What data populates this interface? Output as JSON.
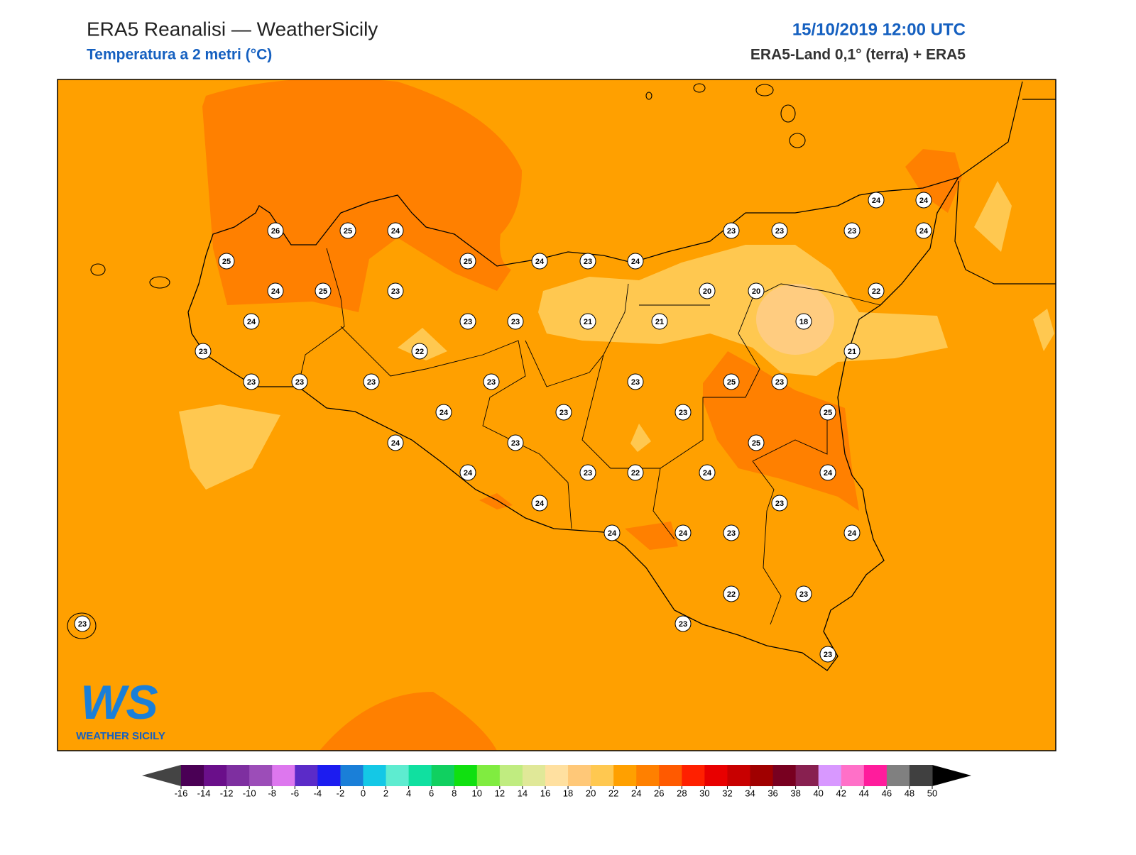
{
  "header": {
    "title": "ERA5 Reanalisi — WeatherSicily",
    "subtitle": "Temperatura a 2 metri (°C)",
    "date": "15/10/2019 12:00 UTC",
    "source": "ERA5-Land 0,1° (terra) + ERA5"
  },
  "stations": {
    "values": [
      26,
      25,
      24,
      25,
      25,
      24,
      23,
      24,
      23,
      23,
      23,
      24,
      24,
      24,
      24,
      25,
      23,
      20,
      20,
      22,
      24,
      23,
      23,
      21,
      21,
      18,
      23,
      22,
      21,
      23,
      23,
      23,
      23,
      23,
      25,
      23,
      24,
      23,
      23,
      25,
      24,
      23,
      25,
      24,
      23,
      22,
      24,
      24,
      24,
      23,
      24,
      24,
      23,
      24,
      22,
      23,
      23,
      23,
      23
    ]
  },
  "colorbar": {
    "ticks": [
      -16,
      -14,
      -12,
      -10,
      -8,
      -6,
      -4,
      -2,
      0,
      2,
      4,
      6,
      8,
      10,
      12,
      14,
      16,
      18,
      20,
      22,
      24,
      26,
      28,
      30,
      32,
      34,
      36,
      38,
      40,
      42,
      44,
      46,
      48,
      50
    ],
    "colors": [
      "#4a0055",
      "#6a0f8a",
      "#7e2fa0",
      "#9c4db8",
      "#dd77ee",
      "#5b2bc8",
      "#1c1cf0",
      "#1a7fd8",
      "#14c8e6",
      "#5eecd0",
      "#10e0a0",
      "#10d060",
      "#10e010",
      "#80ec40",
      "#c0ec80",
      "#e0e898",
      "#ffe0a0",
      "#ffc878",
      "#ffc850",
      "#ffa000",
      "#ff8000",
      "#ff5a00",
      "#ff2000",
      "#e80000",
      "#c80000",
      "#a00000",
      "#780020",
      "#882050",
      "#d898ff",
      "#ff70c8",
      "#ff1c9c",
      "#808080",
      "#404040"
    ],
    "under_color": "#444444",
    "over_color": "#000000"
  },
  "logo": {
    "mark": "WS",
    "text": "WEATHER SICILY"
  }
}
